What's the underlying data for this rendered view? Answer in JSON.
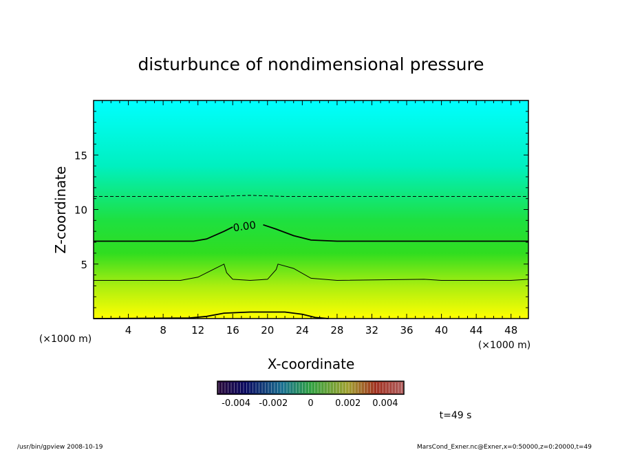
{
  "chart_data": {
    "type": "heatmap",
    "title": "disturbunce of nondimensional pressure",
    "xlabel": "X-coordinate",
    "ylabel": "Z-coordinate",
    "x_unit": "(×1000 m)",
    "y_unit": "(×1000 m)",
    "xlim": [
      0,
      50
    ],
    "ylim": [
      0,
      20
    ],
    "xticks": [
      4,
      8,
      12,
      16,
      20,
      24,
      28,
      32,
      36,
      40,
      44,
      48
    ],
    "yticks": [
      5,
      10,
      15
    ],
    "contour_label": "0.00",
    "contours": [
      {
        "style": "dashed",
        "points": [
          [
            0,
            11.2
          ],
          [
            14,
            11.2
          ],
          [
            18,
            11.3
          ],
          [
            22,
            11.2
          ],
          [
            50,
            11.2
          ]
        ]
      },
      {
        "style": "thick",
        "points": [
          [
            0,
            7.1
          ],
          [
            11.5,
            7.1
          ],
          [
            13,
            7.3
          ],
          [
            15,
            8.0
          ],
          [
            16,
            8.4
          ]
        ]
      },
      {
        "style": "thick",
        "points": [
          [
            19.5,
            8.6
          ],
          [
            21,
            8.2
          ],
          [
            23,
            7.6
          ],
          [
            25,
            7.2
          ],
          [
            28,
            7.1
          ],
          [
            50,
            7.1
          ]
        ]
      },
      {
        "style": "thin",
        "points": [
          [
            0,
            3.5
          ],
          [
            10,
            3.5
          ],
          [
            12,
            3.8
          ],
          [
            14,
            4.6
          ],
          [
            15,
            5.0
          ],
          [
            15.3,
            4.2
          ],
          [
            16,
            3.6
          ],
          [
            18,
            3.5
          ],
          [
            20,
            3.6
          ],
          [
            21,
            4.5
          ],
          [
            21.2,
            5.0
          ],
          [
            23,
            4.6
          ],
          [
            25,
            3.7
          ],
          [
            28,
            3.5
          ],
          [
            38,
            3.6
          ],
          [
            40,
            3.5
          ],
          [
            48,
            3.5
          ],
          [
            50,
            3.6
          ]
        ]
      },
      {
        "style": "thick",
        "points": [
          [
            0,
            0
          ],
          [
            11,
            0.05
          ],
          [
            13,
            0.2
          ],
          [
            15,
            0.5
          ],
          [
            18,
            0.6
          ],
          [
            22,
            0.6
          ],
          [
            24,
            0.4
          ],
          [
            25.5,
            0.1
          ],
          [
            27,
            0
          ]
        ]
      }
    ],
    "colorbar": {
      "ticks": [
        "-0.004",
        "-0.002",
        "0",
        "0.002",
        "0.004"
      ],
      "range": [
        -0.005,
        0.005
      ]
    },
    "colors": {
      "top": "#00ffff",
      "middle": "#22dd22",
      "bottom": "#ffff00"
    }
  },
  "annotations": {
    "time": "t=49 s",
    "footer_left": "/usr/bin/gpview  2008-10-19",
    "footer_right": "MarsCond_Exner.nc@Exner,x=0:50000,z=0:20000,t=49"
  }
}
